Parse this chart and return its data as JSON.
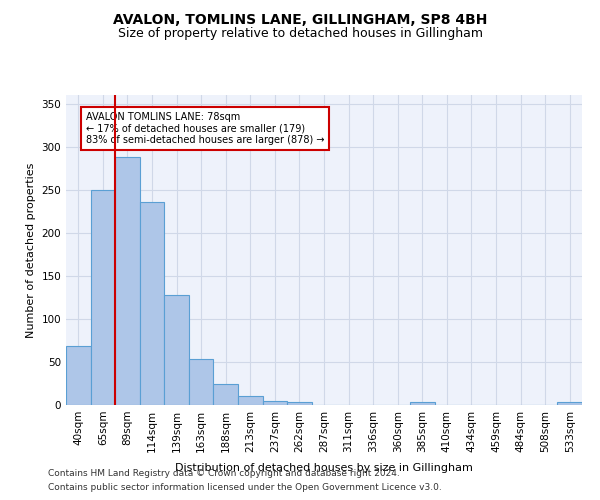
{
  "title": "AVALON, TOMLINS LANE, GILLINGHAM, SP8 4BH",
  "subtitle": "Size of property relative to detached houses in Gillingham",
  "xlabel": "Distribution of detached houses by size in Gillingham",
  "ylabel": "Number of detached properties",
  "footer_line1": "Contains HM Land Registry data © Crown copyright and database right 2024.",
  "footer_line2": "Contains public sector information licensed under the Open Government Licence v3.0.",
  "bin_labels": [
    "40sqm",
    "65sqm",
    "89sqm",
    "114sqm",
    "139sqm",
    "163sqm",
    "188sqm",
    "213sqm",
    "237sqm",
    "262sqm",
    "287sqm",
    "311sqm",
    "336sqm",
    "360sqm",
    "385sqm",
    "410sqm",
    "434sqm",
    "459sqm",
    "484sqm",
    "508sqm",
    "533sqm"
  ],
  "bar_values": [
    68,
    250,
    288,
    236,
    128,
    53,
    24,
    10,
    5,
    4,
    0,
    0,
    0,
    0,
    4,
    0,
    0,
    0,
    0,
    0,
    3
  ],
  "bar_color": "#aec6e8",
  "bar_edge_color": "#5a9fd4",
  "bar_edge_width": 0.8,
  "vline_color": "#cc0000",
  "vline_label_text": "AVALON TOMLINS LANE: 78sqm\n← 17% of detached houses are smaller (179)\n83% of semi-detached houses are larger (878) →",
  "ylim": [
    0,
    360
  ],
  "yticks": [
    0,
    50,
    100,
    150,
    200,
    250,
    300,
    350
  ],
  "grid_color": "#d0d8e8",
  "bg_color": "#eef2fb",
  "title_fontsize": 10,
  "subtitle_fontsize": 9,
  "ylabel_fontsize": 8,
  "xlabel_fontsize": 8,
  "tick_fontsize": 7.5,
  "annot_fontsize": 7,
  "footer_fontsize": 6.5
}
